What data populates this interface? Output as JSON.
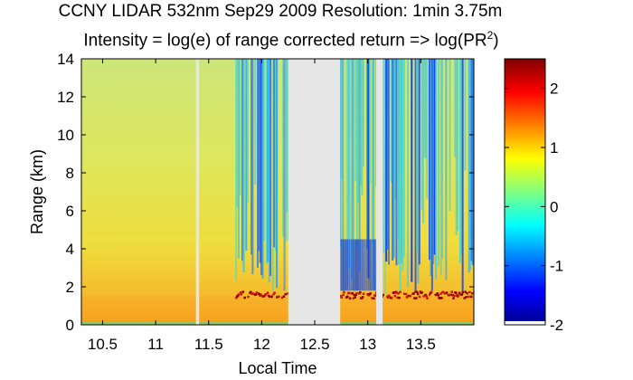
{
  "chart_data": {
    "type": "heatmap",
    "title": "CCNY LIDAR 532nm Sep29 2009 Resolution: 1min 3.75m",
    "subtitle": "Intensity = log(e) of range corrected return => log(PR",
    "subtitle_sup": "2",
    "subtitle_end": ")",
    "xlabel": "Local Time",
    "ylabel": "Range (km)",
    "xlim": [
      10.3,
      14.0
    ],
    "ylim": [
      0,
      14
    ],
    "x_ticks": [
      10.5,
      11,
      11.5,
      12,
      12.5,
      13,
      13.5
    ],
    "x_tick_labels": [
      "10.5",
      "11",
      "11.5",
      "12",
      "12.5",
      "13",
      "13.5"
    ],
    "y_ticks": [
      0,
      2,
      4,
      6,
      8,
      10,
      12,
      14
    ],
    "y_tick_labels": [
      "0",
      "2",
      "4",
      "6",
      "8",
      "10",
      "12",
      "14"
    ],
    "colorbar": {
      "range": [
        -2,
        2.5
      ],
      "ticks": [
        -2,
        -1,
        0,
        1,
        2
      ],
      "tick_labels": [
        "-2",
        "-1",
        "0",
        "1",
        "2"
      ]
    },
    "data_gaps_hours": [
      [
        11.38,
        11.41
      ],
      [
        12.25,
        12.74
      ],
      [
        13.08,
        13.14
      ]
    ],
    "boundary_layer_top_km": 1.5,
    "cloud_onset_hour": 11.75
  }
}
